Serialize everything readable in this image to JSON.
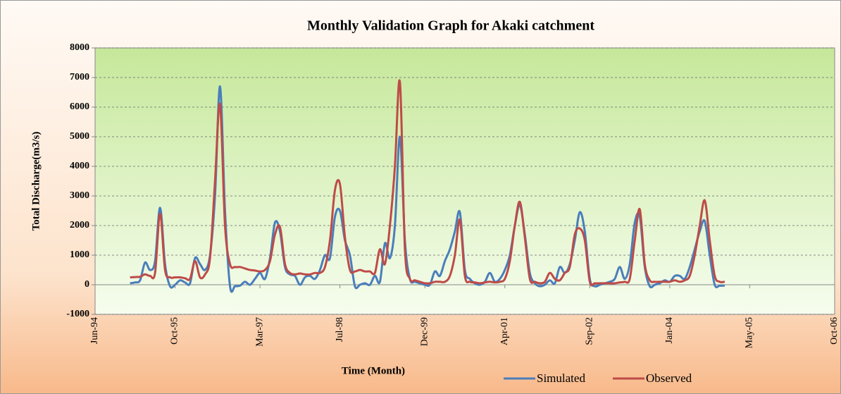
{
  "chart_data": {
    "type": "line",
    "title": "Monthly Validation Graph for Akaki catchment",
    "x_label": "Time (Month)",
    "y_label": "Total Discharge(m3/s)",
    "x": [
      "1995-01",
      "1995-02",
      "1995-03",
      "1995-04",
      "1995-05",
      "1995-06",
      "1995-07",
      "1995-08",
      "1995-09",
      "1995-10",
      "1995-11",
      "1995-12",
      "1996-01",
      "1996-02",
      "1996-03",
      "1996-04",
      "1996-05",
      "1996-06",
      "1996-07",
      "1996-08",
      "1996-09",
      "1996-10",
      "1996-11",
      "1996-12",
      "1997-01",
      "1997-02",
      "1997-03",
      "1997-04",
      "1997-05",
      "1997-06",
      "1997-07",
      "1997-08",
      "1997-09",
      "1997-10",
      "1997-11",
      "1997-12",
      "1998-01",
      "1998-02",
      "1998-03",
      "1998-04",
      "1998-05",
      "1998-06",
      "1998-07",
      "1998-08",
      "1998-09",
      "1998-10",
      "1998-11",
      "1998-12",
      "1999-01",
      "1999-02",
      "1999-03",
      "1999-04",
      "1999-05",
      "1999-06",
      "1999-07",
      "1999-08",
      "1999-09",
      "1999-10",
      "1999-11",
      "1999-12",
      "2000-01",
      "2000-02",
      "2000-03",
      "2000-04",
      "2000-05",
      "2000-06",
      "2000-07",
      "2000-08",
      "2000-09",
      "2000-10",
      "2000-11",
      "2000-12",
      "2001-01",
      "2001-02",
      "2001-03",
      "2001-04",
      "2001-05",
      "2001-06",
      "2001-07",
      "2001-08",
      "2001-09",
      "2001-10",
      "2001-11",
      "2001-12",
      "2002-01",
      "2002-02",
      "2002-03",
      "2002-04",
      "2002-05",
      "2002-06",
      "2002-07",
      "2002-08",
      "2002-09",
      "2002-10",
      "2002-11",
      "2002-12",
      "2003-01",
      "2003-02",
      "2003-03",
      "2003-04",
      "2003-05",
      "2003-06",
      "2003-07",
      "2003-08",
      "2003-09",
      "2003-10",
      "2003-11",
      "2003-12",
      "2004-01",
      "2004-02",
      "2004-03",
      "2004-04",
      "2004-05",
      "2004-06",
      "2004-07",
      "2004-08",
      "2004-09",
      "2004-10",
      "2004-11",
      "2004-12"
    ],
    "series": [
      {
        "name": "Simulated",
        "color": "#4a7ebb",
        "values": [
          50,
          80,
          150,
          750,
          500,
          800,
          2600,
          700,
          -50,
          0,
          150,
          80,
          50,
          900,
          700,
          500,
          1000,
          3000,
          6700,
          2500,
          -50,
          -50,
          -30,
          100,
          0,
          200,
          400,
          200,
          900,
          2100,
          1800,
          600,
          350,
          300,
          0,
          250,
          300,
          200,
          500,
          1000,
          900,
          2300,
          2500,
          1500,
          1000,
          -50,
          0,
          50,
          0,
          300,
          100,
          1400,
          900,
          2000,
          5000,
          1500,
          200,
          100,
          50,
          0,
          0,
          450,
          300,
          800,
          1200,
          1800,
          2450,
          500,
          200,
          50,
          0,
          100,
          400,
          100,
          200,
          500,
          1000,
          2000,
          2700,
          1700,
          400,
          50,
          -50,
          0,
          150,
          50,
          600,
          400,
          700,
          1500,
          2450,
          1800,
          200,
          -50,
          0,
          50,
          100,
          200,
          600,
          200,
          700,
          2100,
          2300,
          600,
          -50,
          0,
          50,
          150,
          100,
          300,
          300,
          200,
          600,
          1200,
          1800,
          2150,
          1000,
          0,
          -30,
          -30
        ]
      },
      {
        "name": "Observed",
        "color": "#be4b48",
        "values": [
          250,
          260,
          270,
          350,
          300,
          400,
          2400,
          500,
          250,
          250,
          250,
          220,
          200,
          800,
          250,
          350,
          900,
          3500,
          6100,
          2000,
          700,
          600,
          600,
          550,
          500,
          480,
          450,
          500,
          800,
          1700,
          1950,
          700,
          400,
          350,
          380,
          350,
          350,
          400,
          400,
          600,
          1500,
          3200,
          3400,
          1600,
          500,
          450,
          500,
          450,
          450,
          400,
          1200,
          700,
          2000,
          4000,
          6850,
          1200,
          200,
          150,
          100,
          50,
          50,
          100,
          100,
          100,
          300,
          1000,
          2200,
          300,
          100,
          80,
          50,
          80,
          100,
          80,
          100,
          200,
          800,
          2000,
          2800,
          1600,
          200,
          100,
          50,
          100,
          400,
          200,
          150,
          400,
          600,
          1700,
          1900,
          1500,
          100,
          50,
          50,
          50,
          50,
          50,
          80,
          100,
          200,
          1500,
          2550,
          700,
          150,
          100,
          100,
          100,
          100,
          150,
          100,
          150,
          300,
          1000,
          2000,
          2850,
          1500,
          300,
          100,
          100
        ]
      }
    ],
    "xlim": [
      "1994-06",
      "2006-10"
    ],
    "xticks": [
      {
        "value": "1994-06",
        "label": "Jun-94"
      },
      {
        "value": "1995-10",
        "label": "Oct-95"
      },
      {
        "value": "1997-03",
        "label": "Mar-97"
      },
      {
        "value": "1998-07",
        "label": "Jul-98"
      },
      {
        "value": "1999-12",
        "label": "Dec-99"
      },
      {
        "value": "2001-04",
        "label": "Apr-01"
      },
      {
        "value": "2002-09",
        "label": "Sep-02"
      },
      {
        "value": "2004-01",
        "label": "Jan-04"
      },
      {
        "value": "2005-05",
        "label": "May-05"
      },
      {
        "value": "2006-10",
        "label": "Oct-06"
      }
    ],
    "ylim": [
      -1000,
      8000
    ],
    "yticks": [
      -1000,
      0,
      1000,
      2000,
      3000,
      4000,
      5000,
      6000,
      7000,
      8000
    ],
    "grid": true,
    "legend": "bottom"
  }
}
